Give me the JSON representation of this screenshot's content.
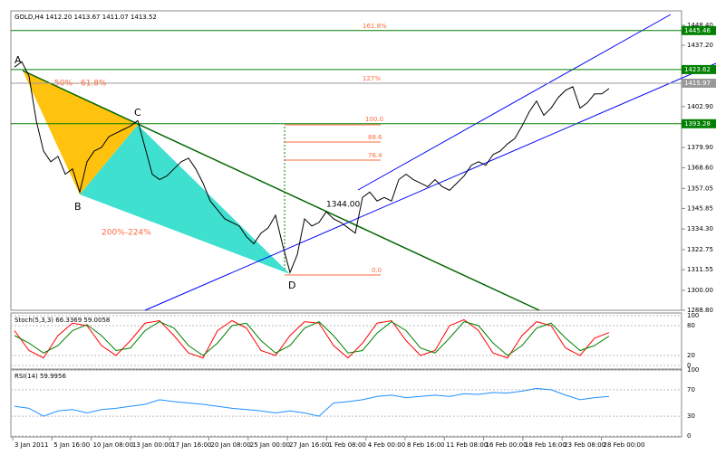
{
  "chart_data": {
    "type": "line",
    "title": "GOLD,H4 1412.20 1413.67 1411.07 1413.52",
    "x_labels": [
      "3 Jan 2011",
      "5 Jan 16:00",
      "10 Jan 08:00",
      "13 Jan 00:00",
      "17 Jan 16:00",
      "20 Jan 08:00",
      "25 Jan 00:00",
      "27 Jan 16:00",
      "1 Feb 08:00",
      "4 Feb 00:00",
      "8 Feb 16:00",
      "11 Feb 08:00",
      "16 Feb 00:00",
      "18 Feb 16:00",
      "23 Feb 08:00",
      "28 Feb 00:00"
    ],
    "series": [
      {
        "name": "GOLD",
        "color": "#000000",
        "values": [
          1425,
          1428,
          1420,
          1395,
          1378,
          1372,
          1375,
          1365,
          1368,
          1355,
          1372,
          1378,
          1380,
          1386,
          1388,
          1390,
          1392,
          1395,
          1380,
          1365,
          1362,
          1364,
          1368,
          1372,
          1374,
          1368,
          1360,
          1350,
          1345,
          1340,
          1338,
          1336,
          1330,
          1326,
          1332,
          1335,
          1342,
          1325,
          1310,
          1320,
          1340,
          1336,
          1338,
          1344,
          1340,
          1338,
          1335,
          1332,
          1352,
          1355,
          1350,
          1352,
          1350,
          1362,
          1365,
          1362,
          1360,
          1358,
          1362,
          1358,
          1356,
          1360,
          1364,
          1370,
          1372,
          1370,
          1376,
          1378,
          1382,
          1385,
          1392,
          1400,
          1406,
          1398,
          1402,
          1408,
          1412,
          1414,
          1402,
          1405,
          1410,
          1410,
          1413
        ]
      }
    ],
    "ylim": [
      1288.8,
      1456.5
    ],
    "yticks": [
      {
        "value": 1448.4,
        "label": "1448.40"
      },
      {
        "value": 1437.2,
        "label": "1437.20"
      },
      {
        "value": 1402.9,
        "label": "1402.90"
      },
      {
        "value": 1379.9,
        "label": "1379.90"
      },
      {
        "value": 1368.6,
        "label": "1368.60"
      },
      {
        "value": 1357.05,
        "label": "1357.05"
      },
      {
        "value": 1345.85,
        "label": "1345.85"
      },
      {
        "value": 1334.3,
        "label": "1334.30"
      },
      {
        "value": 1322.75,
        "label": "1322.75"
      },
      {
        "value": 1311.55,
        "label": "1311.55"
      },
      {
        "value": 1300,
        "label": "1300.00"
      },
      {
        "value": 1288.8,
        "label": "1288.80"
      }
    ],
    "levels": [
      {
        "value": 1445.46,
        "label": "1445.46"
      },
      {
        "value": 1423.62,
        "label": "1423.62"
      },
      {
        "value": 1415.97,
        "label": "1415.97"
      },
      {
        "value": 1393.28,
        "label": "1393.28"
      }
    ],
    "annotations": [
      "161.8%",
      "127%",
      "100.0",
      "88.6",
      "76.4",
      "0.0",
      "50% - 61.8%",
      "200%-224%",
      "1344.00",
      "A",
      "B",
      "C",
      "D"
    ],
    "stoch": {
      "label": "Stoch(5,3,3) 66.3369 59.0058",
      "ylim": [
        0,
        100
      ],
      "yticks": [
        100,
        80,
        20,
        0
      ],
      "series": [
        {
          "color": "#ff0000",
          "values": [
            70,
            30,
            15,
            60,
            85,
            80,
            40,
            20,
            50,
            85,
            90,
            60,
            25,
            15,
            70,
            90,
            75,
            30,
            20,
            60,
            88,
            85,
            40,
            15,
            45,
            85,
            90,
            50,
            20,
            30,
            80,
            92,
            70,
            25,
            15,
            60,
            88,
            80,
            35,
            20,
            55,
            66
          ]
        },
        {
          "color": "#008000",
          "values": [
            60,
            45,
            25,
            40,
            70,
            82,
            60,
            30,
            35,
            70,
            88,
            75,
            40,
            20,
            45,
            80,
            85,
            50,
            25,
            40,
            75,
            88,
            60,
            25,
            30,
            65,
            88,
            70,
            35,
            25,
            55,
            88,
            80,
            45,
            20,
            40,
            75,
            85,
            55,
            30,
            40,
            59
          ]
        }
      ]
    },
    "rsi": {
      "label": "RSI(14) 59.9956",
      "ylim": [
        0,
        100
      ],
      "yticks": [
        100,
        70,
        30,
        0
      ],
      "color": "#1e90ff",
      "values": [
        45,
        42,
        30,
        38,
        40,
        35,
        40,
        42,
        45,
        48,
        55,
        52,
        50,
        48,
        45,
        42,
        40,
        38,
        35,
        38,
        35,
        30,
        50,
        52,
        55,
        60,
        62,
        58,
        60,
        62,
        60,
        64,
        63,
        66,
        65,
        68,
        72,
        70,
        62,
        55,
        58,
        60
      ]
    }
  }
}
